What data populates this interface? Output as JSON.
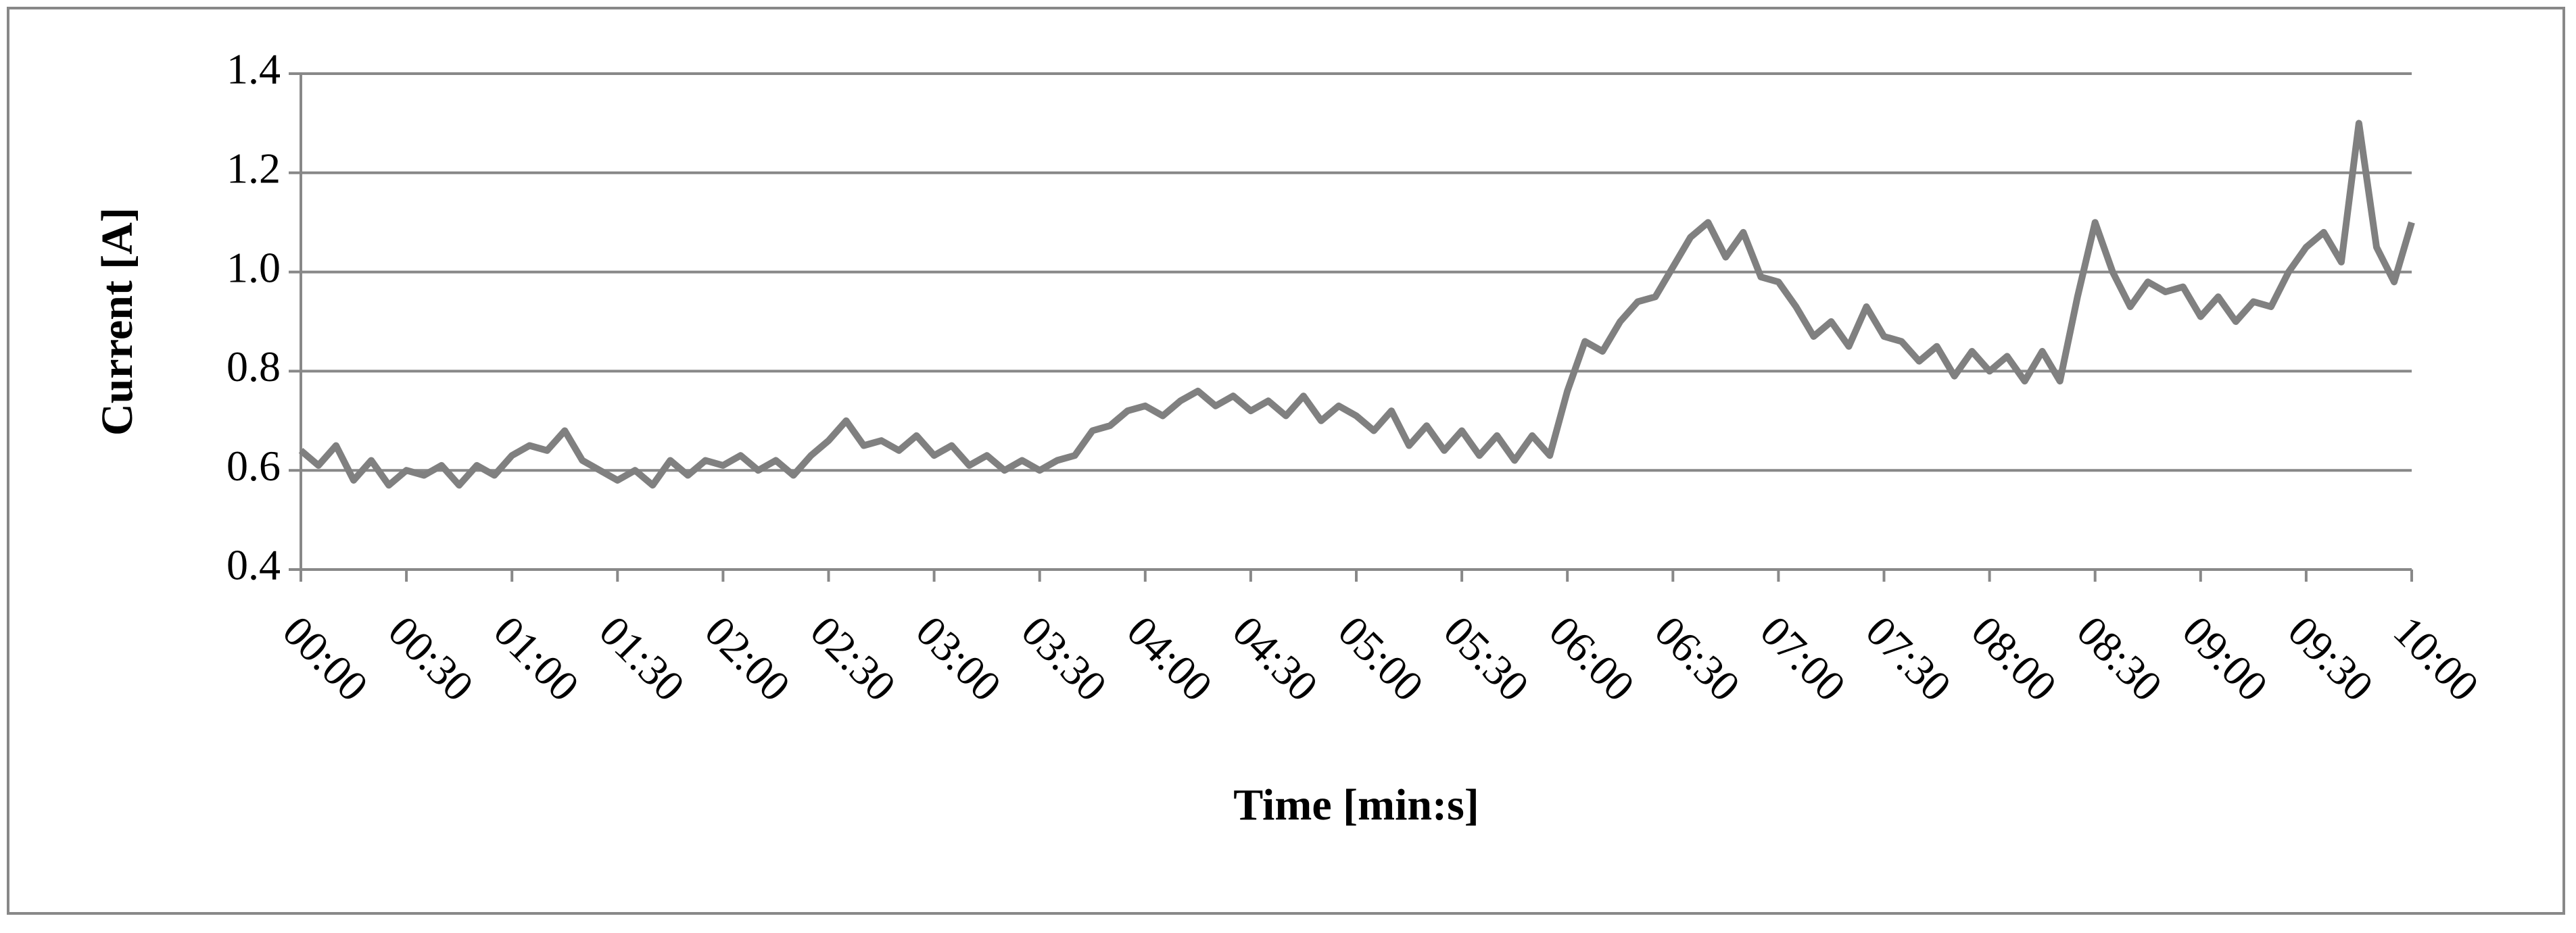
{
  "chart_data": {
    "type": "line",
    "x_label": "Time [min:s]",
    "y_label": "Current [A]",
    "x": [
      0,
      5,
      10,
      15,
      20,
      25,
      30,
      35,
      40,
      45,
      50,
      55,
      60,
      65,
      70,
      75,
      80,
      85,
      90,
      95,
      100,
      105,
      110,
      115,
      120,
      125,
      130,
      135,
      140,
      145,
      150,
      155,
      160,
      165,
      170,
      175,
      180,
      185,
      190,
      195,
      200,
      205,
      210,
      215,
      220,
      225,
      230,
      235,
      240,
      245,
      250,
      255,
      260,
      265,
      270,
      275,
      280,
      285,
      290,
      295,
      300,
      305,
      310,
      315,
      320,
      325,
      330,
      335,
      340,
      345,
      350,
      355,
      360,
      365,
      370,
      375,
      380,
      385,
      390,
      395,
      400,
      405,
      410,
      415,
      420,
      425,
      430,
      435,
      440,
      445,
      450,
      455,
      460,
      465,
      470,
      475,
      480,
      485,
      490,
      495,
      500,
      505,
      510,
      515,
      520,
      525,
      530,
      535,
      540,
      545,
      550,
      555,
      560,
      565,
      570,
      575,
      580,
      585,
      590,
      595,
      600
    ],
    "series": [
      {
        "color": "#808080",
        "values": [
          0.64,
          0.61,
          0.65,
          0.58,
          0.62,
          0.57,
          0.6,
          0.59,
          0.61,
          0.57,
          0.61,
          0.59,
          0.63,
          0.65,
          0.64,
          0.68,
          0.62,
          0.6,
          0.58,
          0.6,
          0.57,
          0.62,
          0.59,
          0.62,
          0.61,
          0.63,
          0.6,
          0.62,
          0.59,
          0.63,
          0.66,
          0.7,
          0.65,
          0.66,
          0.64,
          0.67,
          0.63,
          0.65,
          0.61,
          0.63,
          0.6,
          0.62,
          0.6,
          0.62,
          0.63,
          0.68,
          0.69,
          0.72,
          0.73,
          0.71,
          0.74,
          0.76,
          0.73,
          0.75,
          0.72,
          0.74,
          0.71,
          0.75,
          0.7,
          0.73,
          0.71,
          0.68,
          0.72,
          0.65,
          0.69,
          0.64,
          0.68,
          0.63,
          0.67,
          0.62,
          0.67,
          0.63,
          0.76,
          0.86,
          0.84,
          0.9,
          0.94,
          0.95,
          1.01,
          1.07,
          1.1,
          1.03,
          1.08,
          0.99,
          0.98,
          0.93,
          0.87,
          0.9,
          0.85,
          0.93,
          0.87,
          0.86,
          0.82,
          0.85,
          0.79,
          0.84,
          0.8,
          0.83,
          0.78,
          0.84,
          0.78,
          0.95,
          1.1,
          1.0,
          0.93,
          0.98,
          0.96,
          0.97,
          0.91,
          0.95,
          0.9,
          0.94,
          0.93,
          1.0,
          1.05,
          1.08,
          1.02,
          1.3,
          1.05,
          0.98,
          1.1
        ]
      }
    ],
    "xlim": [
      0,
      600
    ],
    "xticks": [
      {
        "value": 0,
        "label": "00:00"
      },
      {
        "value": 30,
        "label": "00:30"
      },
      {
        "value": 60,
        "label": "01:00"
      },
      {
        "value": 90,
        "label": "01:30"
      },
      {
        "value": 120,
        "label": "02:00"
      },
      {
        "value": 150,
        "label": "02:30"
      },
      {
        "value": 180,
        "label": "03:00"
      },
      {
        "value": 210,
        "label": "03:30"
      },
      {
        "value": 240,
        "label": "04:00"
      },
      {
        "value": 270,
        "label": "04:30"
      },
      {
        "value": 300,
        "label": "05:00"
      },
      {
        "value": 330,
        "label": "05:30"
      },
      {
        "value": 360,
        "label": "06:00"
      },
      {
        "value": 390,
        "label": "06:30"
      },
      {
        "value": 420,
        "label": "07:00"
      },
      {
        "value": 450,
        "label": "07:30"
      },
      {
        "value": 480,
        "label": "08:00"
      },
      {
        "value": 510,
        "label": "08:30"
      },
      {
        "value": 540,
        "label": "09:00"
      },
      {
        "value": 570,
        "label": "09:30"
      },
      {
        "value": 600,
        "label": "10:00"
      }
    ],
    "ylim": [
      0.4,
      1.4
    ],
    "yticks": [
      0.4,
      0.6,
      0.8,
      {
        "value": 1,
        "label": "1.0"
      },
      1.2,
      1.4
    ],
    "grid": true
  }
}
